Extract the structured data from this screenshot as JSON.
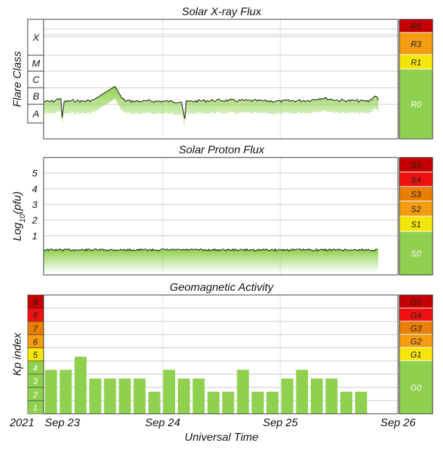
{
  "colors": {
    "green": "#8fd14f",
    "yellow": "#f5e50a",
    "orange": "#f39c12",
    "dark_orange": "#e87e04",
    "red": "#ee1111",
    "dark_red": "#c40000",
    "trace": "#111111"
  },
  "x_axis": {
    "label": "Universal Time",
    "year": "2021",
    "ticks": [
      "Sep 23",
      "Sep 24",
      "Sep 25",
      "Sep 26"
    ],
    "start": "2021-09-23T00:00Z",
    "end": "2021-09-26T00:00Z"
  },
  "chart_data": [
    {
      "type": "line",
      "title": "Solar X-ray Flux",
      "ylabel": "Flare Class",
      "y_scale": "log",
      "ylim": [
        1e-09,
        0.01
      ],
      "y_ticks": [
        "A",
        "B",
        "C",
        "M",
        "X"
      ],
      "scale": [
        {
          "label": "R5",
          "color": "#c40000"
        },
        {
          "label": "R3",
          "color": "#f39c12"
        },
        {
          "label": "R1",
          "color": "#f5e50a"
        },
        {
          "label": "R0",
          "color": "#8fd14f"
        }
      ],
      "series": [
        {
          "x": [
            "09-23 00:00",
            "09-23 02:00",
            "09-23 03:30",
            "09-23 03:45",
            "09-23 04:10",
            "09-23 06:00",
            "09-23 08:00",
            "09-23 10:00",
            "09-23 14:30",
            "09-23 16:00",
            "09-23 16:40",
            "09-23 18:00",
            "09-23 20:00",
            "09-24 00:00",
            "09-24 04:00",
            "09-24 04:40",
            "09-24 05:00",
            "09-24 08:00",
            "09-24 12:00",
            "09-24 18:00",
            "09-25 00:00",
            "09-25 06:00",
            "09-25 08:30",
            "09-25 12:00",
            "09-25 18:00",
            "09-25 19:30",
            "09-25 20:00"
          ],
          "values": [
            1.5e-07,
            1.6e-07,
            2.5e-07,
            1.5e-08,
            1.5e-07,
            1.7e-07,
            1.6e-07,
            1.8e-07,
            1.2e-06,
            2.2e-07,
            1.7e-07,
            1.6e-07,
            1.6e-07,
            1.6e-07,
            1.5e-07,
            1.5e-08,
            1.5e-07,
            1.7e-07,
            1.8e-07,
            1.7e-07,
            1.6e-07,
            1.8e-07,
            2.5e-07,
            1.8e-07,
            1.6e-07,
            3.5e-07,
            1.8e-07
          ]
        }
      ]
    },
    {
      "type": "line",
      "title": "Solar Proton Flux",
      "ylabel": "Log10(pfu)",
      "ylim": [
        -1.5,
        6
      ],
      "y_ticks": [
        1,
        2,
        3,
        4,
        5
      ],
      "scale": [
        {
          "label": "S5",
          "color": "#c40000"
        },
        {
          "label": "S4",
          "color": "#ee1111"
        },
        {
          "label": "S3",
          "color": "#e87e04"
        },
        {
          "label": "S2",
          "color": "#f39c12"
        },
        {
          "label": "S1",
          "color": "#f5e50a"
        },
        {
          "label": "S0",
          "color": "#8fd14f"
        }
      ],
      "series": [
        {
          "x": [
            "09-23 00:00",
            "09-24 00:00",
            "09-25 00:00",
            "09-25 20:00"
          ],
          "values": [
            0.1,
            0.1,
            0.1,
            0.1
          ]
        }
      ]
    },
    {
      "type": "bar",
      "title": "Geomagnetic Activity",
      "ylabel": "Kp index",
      "ylim": [
        0,
        9
      ],
      "y_ticks": [
        1,
        2,
        3,
        4,
        5,
        6,
        7,
        8,
        9
      ],
      "scale": [
        {
          "label": "G5",
          "color": "#c40000"
        },
        {
          "label": "G4",
          "color": "#ee1111"
        },
        {
          "label": "G3",
          "color": "#e87e04"
        },
        {
          "label": "G2",
          "color": "#f39c12"
        },
        {
          "label": "G1",
          "color": "#f5e50a"
        },
        {
          "label": "G0",
          "color": "#8fd14f"
        }
      ],
      "interval_hours": 3,
      "values": [
        3.33,
        3.33,
        4.33,
        2.67,
        2.67,
        2.67,
        2.67,
        1.67,
        3.33,
        2.67,
        2.67,
        1.67,
        1.67,
        3.33,
        1.67,
        1.67,
        2.67,
        3.33,
        2.67,
        2.67,
        1.67,
        1.67
      ]
    }
  ]
}
